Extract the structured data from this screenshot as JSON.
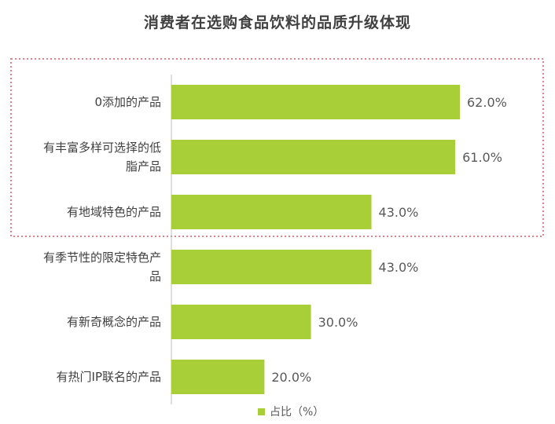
{
  "chart_data": {
    "type": "bar",
    "orientation": "horizontal",
    "title": "消费者在选购食品饮料的品质升级体现",
    "categories": [
      "0添加的产品",
      "有丰富多样可选择的低脂产品",
      "有地域特色的产品",
      "有季节性的限定特色产品",
      "有新奇概念的产品",
      "有热门IP联名的产品"
    ],
    "category_lines": [
      [
        "0添加的产品"
      ],
      [
        "有丰富多样可选择的低",
        "脂产品"
      ],
      [
        "有地域特色的产品"
      ],
      [
        "有季节性的限定特色产",
        "品"
      ],
      [
        "有新奇概念的产品"
      ],
      [
        "有热门IP联名的产品"
      ]
    ],
    "series": [
      {
        "name": "占比（%）",
        "values": [
          62.0,
          61.0,
          43.0,
          43.0,
          30.0,
          20.0
        ]
      }
    ],
    "value_labels": [
      "62.0%",
      "61.0%",
      "43.0%",
      "43.0%",
      "30.0%",
      "20.0%"
    ],
    "xlim": [
      0,
      70
    ],
    "grid": false,
    "legend_position": "bottom",
    "highlight": {
      "categories": [
        0,
        1,
        2
      ],
      "color": "#e87f8a",
      "style": "dotted"
    },
    "colors": {
      "bar": "#a9cf38",
      "axis": "#bfbfbf",
      "text": "#404040"
    }
  }
}
